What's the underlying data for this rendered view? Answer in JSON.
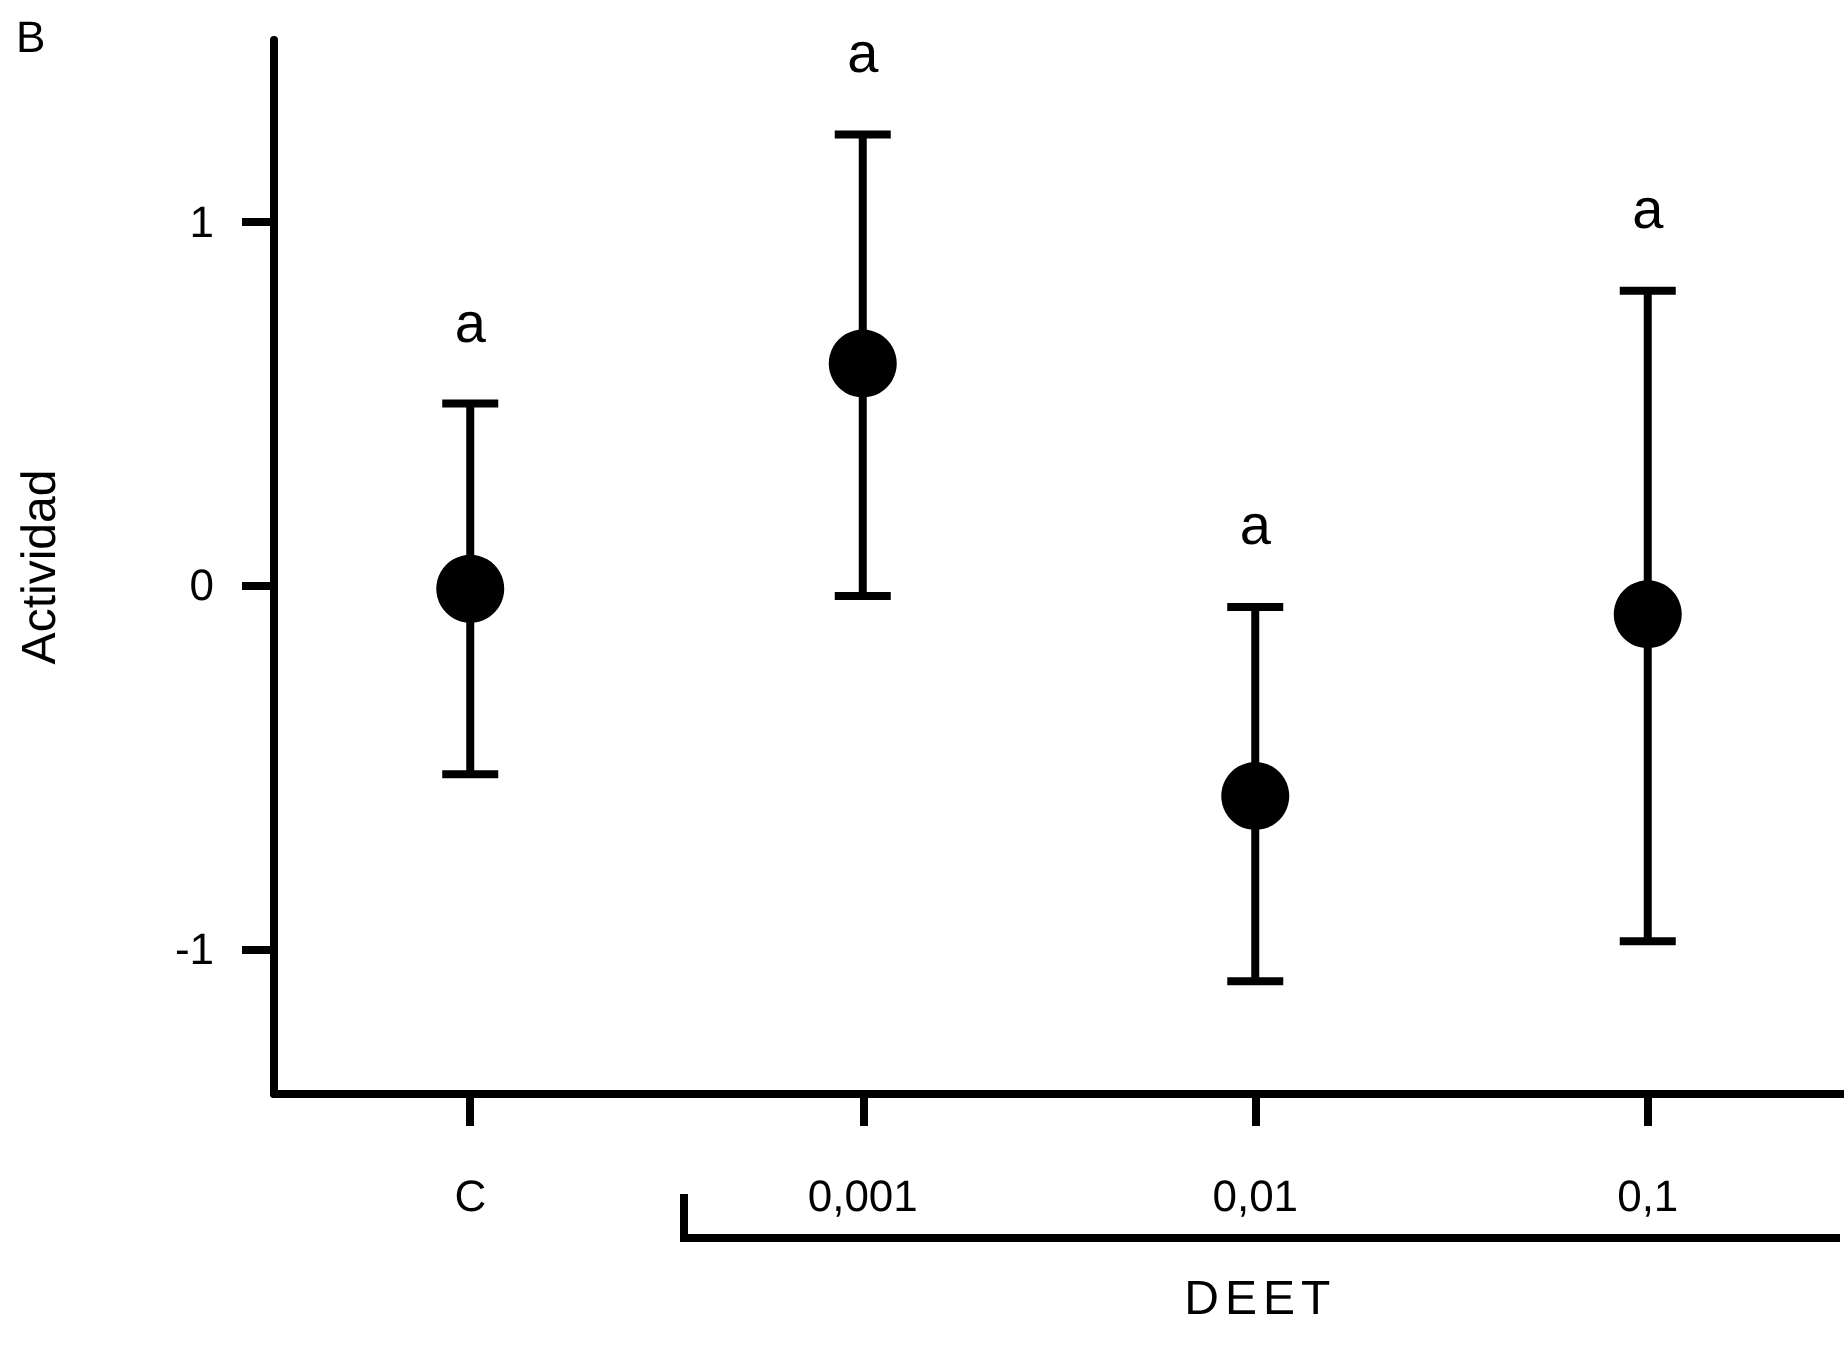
{
  "chart_data": {
    "type": "scatter",
    "ylabel": "Actividad",
    "xlabel": "DEET",
    "categories": [
      "C",
      "0,001",
      "0,01",
      "0,1"
    ],
    "series": [
      {
        "color": "#000000",
        "values": [
          -0.01,
          0.61,
          -0.58,
          -0.08
        ],
        "errors": [
          [
            -0.52,
            0.5
          ],
          [
            -0.03,
            1.24
          ],
          [
            -1.09,
            -0.06
          ],
          [
            -0.98,
            0.81
          ]
        ]
      }
    ],
    "ylim": [
      -1.4,
      1.5
    ],
    "yticks": [
      -1,
      0,
      1
    ],
    "marker": "circle",
    "annotations": [
      "B",
      "a",
      "a",
      "a",
      "a"
    ]
  }
}
